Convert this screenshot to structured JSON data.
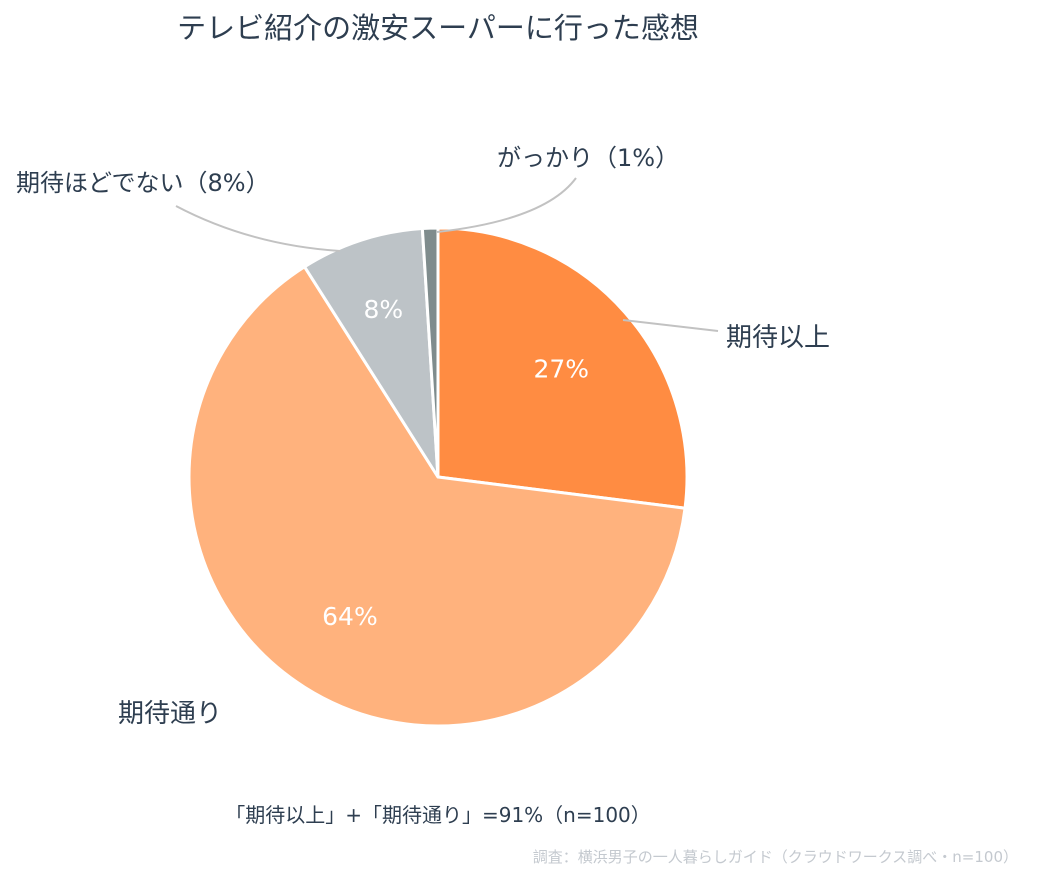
{
  "chart_data": {
    "type": "pie",
    "title": "テレビ紹介の激安スーパーに行った感想",
    "categories": [
      "期待以上",
      "期待通り",
      "期待ほどでない（8%）",
      "がっかり（1%）"
    ],
    "values": [
      27,
      64,
      8,
      1
    ],
    "value_labels": [
      "27%",
      "64%",
      "8%",
      ""
    ],
    "colors": [
      "#ff8c42",
      "#ffb27d",
      "#bdc3c7",
      "#7f8c8d"
    ],
    "summary": "「期待以上」+「期待通り」=91%（n=100）",
    "source": "調査：横浜男子の一人暮らしガイド（クラウドワークス調べ・n=100）"
  }
}
